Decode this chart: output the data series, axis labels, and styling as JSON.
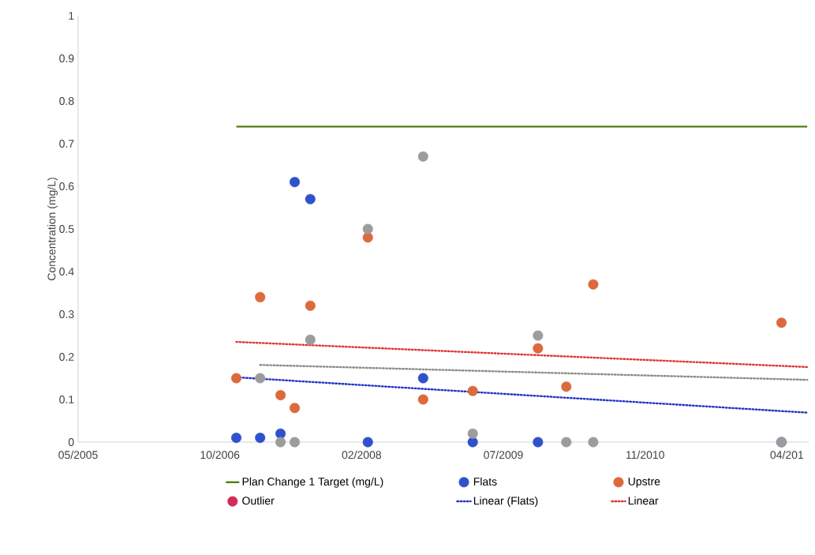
{
  "chart_data": {
    "type": "scatter",
    "ylabel": "Concentration (mg/L)",
    "xlim": [
      "2005-05-31",
      "2012-06-20"
    ],
    "xticks": [
      {
        "value": "2005-05-31",
        "label": "05/2005"
      },
      {
        "value": "2006-10-13",
        "label": "10/2006"
      },
      {
        "value": "2008-02-25",
        "label": "02/2008"
      },
      {
        "value": "2009-07-09",
        "label": "07/2009"
      },
      {
        "value": "2010-11-21",
        "label": "11/2010"
      },
      {
        "value": "2012-04-04",
        "label": "04/201"
      }
    ],
    "ylim": [
      0,
      1
    ],
    "yticks": [
      0,
      0.1,
      0.2,
      0.3,
      0.4,
      0.5,
      0.6,
      0.7,
      0.8,
      0.9,
      1
    ],
    "legend": "bottom",
    "series": [
      {
        "name": "Plan Change 1 Target (mg/L)",
        "type": "line",
        "color": "#4f7f12",
        "line_style": "solid",
        "marker": "none",
        "x": [
          "2006-12-10",
          "2012-06-15"
        ],
        "values": [
          0.74,
          0.74
        ]
      },
      {
        "name": "Flats",
        "color": "#2f52cc",
        "marker": "circle",
        "x": [
          "2006-12-10",
          "2007-03-04",
          "2007-05-15",
          "2007-07-04",
          "2007-08-28",
          "2008-03-18",
          "2008-09-29",
          "2009-03-23",
          "2009-11-08",
          "2012-03-16"
        ],
        "values": [
          0.01,
          0.01,
          0.02,
          0.61,
          0.57,
          0,
          0.15,
          0,
          0,
          0
        ]
      },
      {
        "name": "Upstre",
        "color": "#dc6a3c",
        "marker": "circle",
        "x": [
          "2006-12-10",
          "2007-03-04",
          "2007-05-15",
          "2007-07-04",
          "2007-08-28",
          "2008-03-18",
          "2008-09-29",
          "2009-03-23",
          "2009-11-08",
          "2010-02-16",
          "2010-05-22",
          "2012-03-16"
        ],
        "values": [
          0.15,
          0.34,
          0.11,
          0.08,
          0.32,
          0.48,
          0.1,
          0.12,
          0.22,
          0.13,
          0.37,
          0.28
        ]
      },
      {
        "name": "Outlier",
        "color": "#d42a5a",
        "marker": "circle"
      },
      {
        "color": "#9c9c9c",
        "marker": "circle",
        "x": [
          "2007-03-04",
          "2007-05-15",
          "2007-07-04",
          "2007-08-28",
          "2008-03-18",
          "2008-09-29",
          "2009-03-23",
          "2009-11-08",
          "2010-02-16",
          "2010-05-22",
          "2012-03-16"
        ],
        "values": [
          0.15,
          0,
          0,
          0.24,
          0.5,
          0.67,
          0.02,
          0.25,
          0,
          0,
          0
        ]
      },
      {
        "name": "Linear (Flats)",
        "type": "line",
        "color": "#2233c8",
        "line_style": "dotted",
        "marker": "none",
        "x": [
          "2006-12-10",
          "2012-06-15"
        ],
        "values": [
          0.152,
          0.069
        ]
      },
      {
        "name": "Linear",
        "type": "line",
        "color": "#e03434",
        "line_style": "dotted",
        "marker": "none",
        "x": [
          "2006-12-10",
          "2012-06-15"
        ],
        "values": [
          0.235,
          0.176
        ]
      },
      {
        "type": "line",
        "color": "#8c8c8c",
        "line_style": "dotted",
        "marker": "none",
        "x": [
          "2007-03-04",
          "2012-06-15"
        ],
        "values": [
          0.181,
          0.146
        ]
      }
    ]
  }
}
